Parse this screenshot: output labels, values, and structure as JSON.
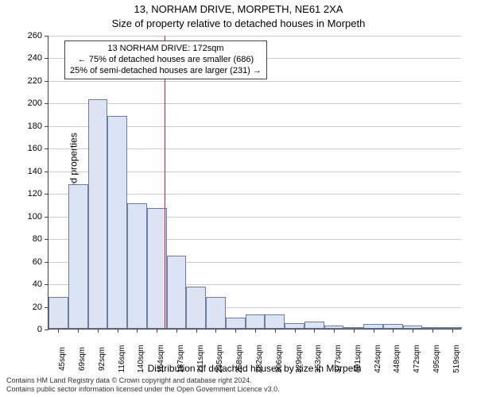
{
  "title_main": "13, NORHAM DRIVE, MORPETH, NE61 2XA",
  "title_sub": "Size of property relative to detached houses in Morpeth",
  "y_axis_label": "Number of detached properties",
  "x_axis_label": "Distribution of detached houses by size in Morpeth",
  "footer_line1": "Contains HM Land Registry data © Crown copyright and database right 2024.",
  "footer_line2": "Contains public sector information licensed under the Open Government Licence v3.0.",
  "annotation": {
    "line1": "13 NORHAM DRIVE: 172sqm",
    "line2": "← 75% of detached houses are smaller (686)",
    "line3": "25% of semi-detached houses are larger (231) →"
  },
  "chart": {
    "type": "histogram",
    "ylim": [
      0,
      260
    ],
    "ytick_step": 20,
    "x_categories": [
      "45sqm",
      "69sqm",
      "92sqm",
      "116sqm",
      "140sqm",
      "164sqm",
      "187sqm",
      "211sqm",
      "235sqm",
      "258sqm",
      "282sqm",
      "306sqm",
      "329sqm",
      "353sqm",
      "377sqm",
      "401sqm",
      "424sqm",
      "448sqm",
      "472sqm",
      "495sqm",
      "519sqm"
    ],
    "bar_values": [
      28,
      128,
      203,
      188,
      111,
      107,
      65,
      37,
      28,
      10,
      13,
      13,
      5,
      6,
      3,
      1,
      4,
      4,
      3,
      1,
      1
    ],
    "bar_color": "#dce3f2",
    "bar_border_color": "#6a7ea5",
    "vline_index": 5.4,
    "vline_color": "#d62728",
    "grid_color": "#cccccc",
    "background_color": "#ffffff",
    "axis_color": "#444444",
    "tick_fontsize": 11,
    "label_fontsize": 12,
    "title_fontsize": 13
  }
}
